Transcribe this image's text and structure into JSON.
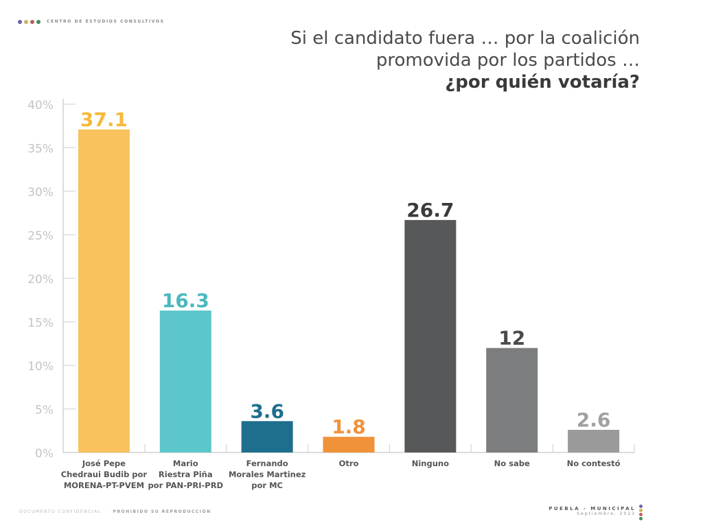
{
  "header": {
    "brand_name": "CENTRO DE ESTUDIOS CONSULTIVOS",
    "brand_dot_colors": [
      "#6b63a8",
      "#c9b35a",
      "#c0605a",
      "#3f8f5f"
    ],
    "title_line1": "Si el candidato fuera … por la coalición",
    "title_line2": "promovida por los partidos …",
    "title_line3": "¿por quién votaría?"
  },
  "footer": {
    "left_text": "DOCUMENTO CONFIDENCIAL",
    "left_text_bold": "PROHIBIDO SU REPRODUCCIÓN",
    "right_title": "PUEBLA - MUNICIPAL",
    "right_date": "Septiembre, 2023",
    "dot_colors": [
      "#6b63a8",
      "#c9b35a",
      "#c0605a",
      "#3f8f5f"
    ]
  },
  "chart_data": {
    "type": "bar",
    "title": "Si el candidato fuera … por la coalición promovida por los partidos … ¿por quién votaría?",
    "xlabel": "",
    "ylabel": "",
    "ylim": [
      0,
      40
    ],
    "yticks": [
      "0%",
      "5%",
      "10%",
      "15%",
      "20%",
      "25%",
      "30%",
      "35%",
      "40%"
    ],
    "ytick_values": [
      0,
      5,
      10,
      15,
      20,
      25,
      30,
      35,
      40
    ],
    "grid": false,
    "legend": "none",
    "categories": [
      [
        "José Pepe",
        "Chedraui Budib por",
        "MORENA-PT-PVEM"
      ],
      [
        "Mario",
        "Riestra Piña",
        "por PAN-PRI-PRD"
      ],
      [
        "Fernando",
        "Morales Martinez",
        "por MC"
      ],
      [
        "Otro"
      ],
      [
        "Ninguno"
      ],
      [
        "No sabe"
      ],
      [
        "No contestó"
      ]
    ],
    "values": [
      37.1,
      16.3,
      3.6,
      1.8,
      26.7,
      12,
      2.6
    ],
    "value_labels": [
      "37.1",
      "16.3",
      "3.6",
      "1.8",
      "26.7",
      "12",
      "2.6"
    ],
    "colors": [
      "#f9c25c",
      "#5dc6cb",
      "#1e6e8e",
      "#f0923a",
      "#565859",
      "#7b7d7e",
      "#9a9a9a"
    ],
    "label_colors": [
      "#f6b93a",
      "#4bb8be",
      "#1e6e8e",
      "#f0923a",
      "#3a3a3a",
      "#4a4a4a",
      "#a0a0a0"
    ]
  }
}
